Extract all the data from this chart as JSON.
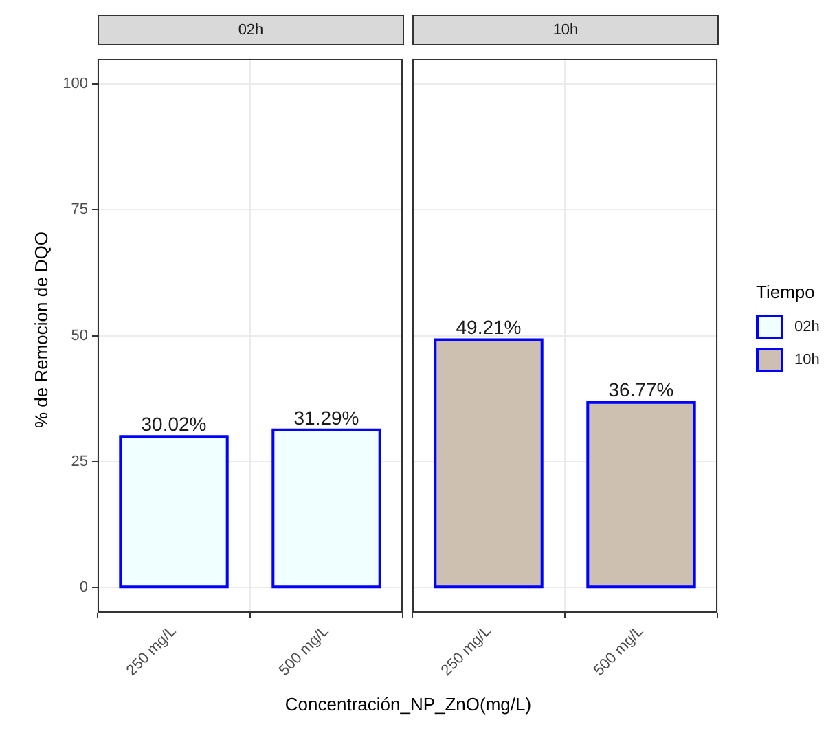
{
  "chart_data": [
    {
      "type": "bar",
      "title": "02h",
      "ylabel": "% de Remocion de DQO",
      "xlabel": "Concentración_NP_ZnO(mg/L)",
      "categories": [
        "250 mg/L",
        "500 mg/L"
      ],
      "series": [
        {
          "name": "02h",
          "color": "#f0ffff",
          "values": [
            30.02,
            31.29
          ],
          "value_labels": [
            "30.02%",
            "31.29%"
          ]
        }
      ],
      "ylim": [
        -5,
        105
      ],
      "yticks": [
        0,
        25,
        50,
        75,
        100
      ],
      "grid": true,
      "legend": "right",
      "legend_title": "Tiempo"
    },
    {
      "type": "bar",
      "title": "10h",
      "categories": [
        "250 mg/L",
        "500 mg/L"
      ],
      "series": [
        {
          "name": "10h",
          "color": "#cdc0b0",
          "values": [
            49.21,
            36.77
          ],
          "value_labels": [
            "49.21%",
            "36.77%"
          ]
        }
      ],
      "ylim": [
        -5,
        105
      ],
      "yticks": [
        0,
        25,
        50,
        75,
        100
      ],
      "grid": true,
      "legend": "right",
      "tick_labels": "x"
    }
  ]
}
